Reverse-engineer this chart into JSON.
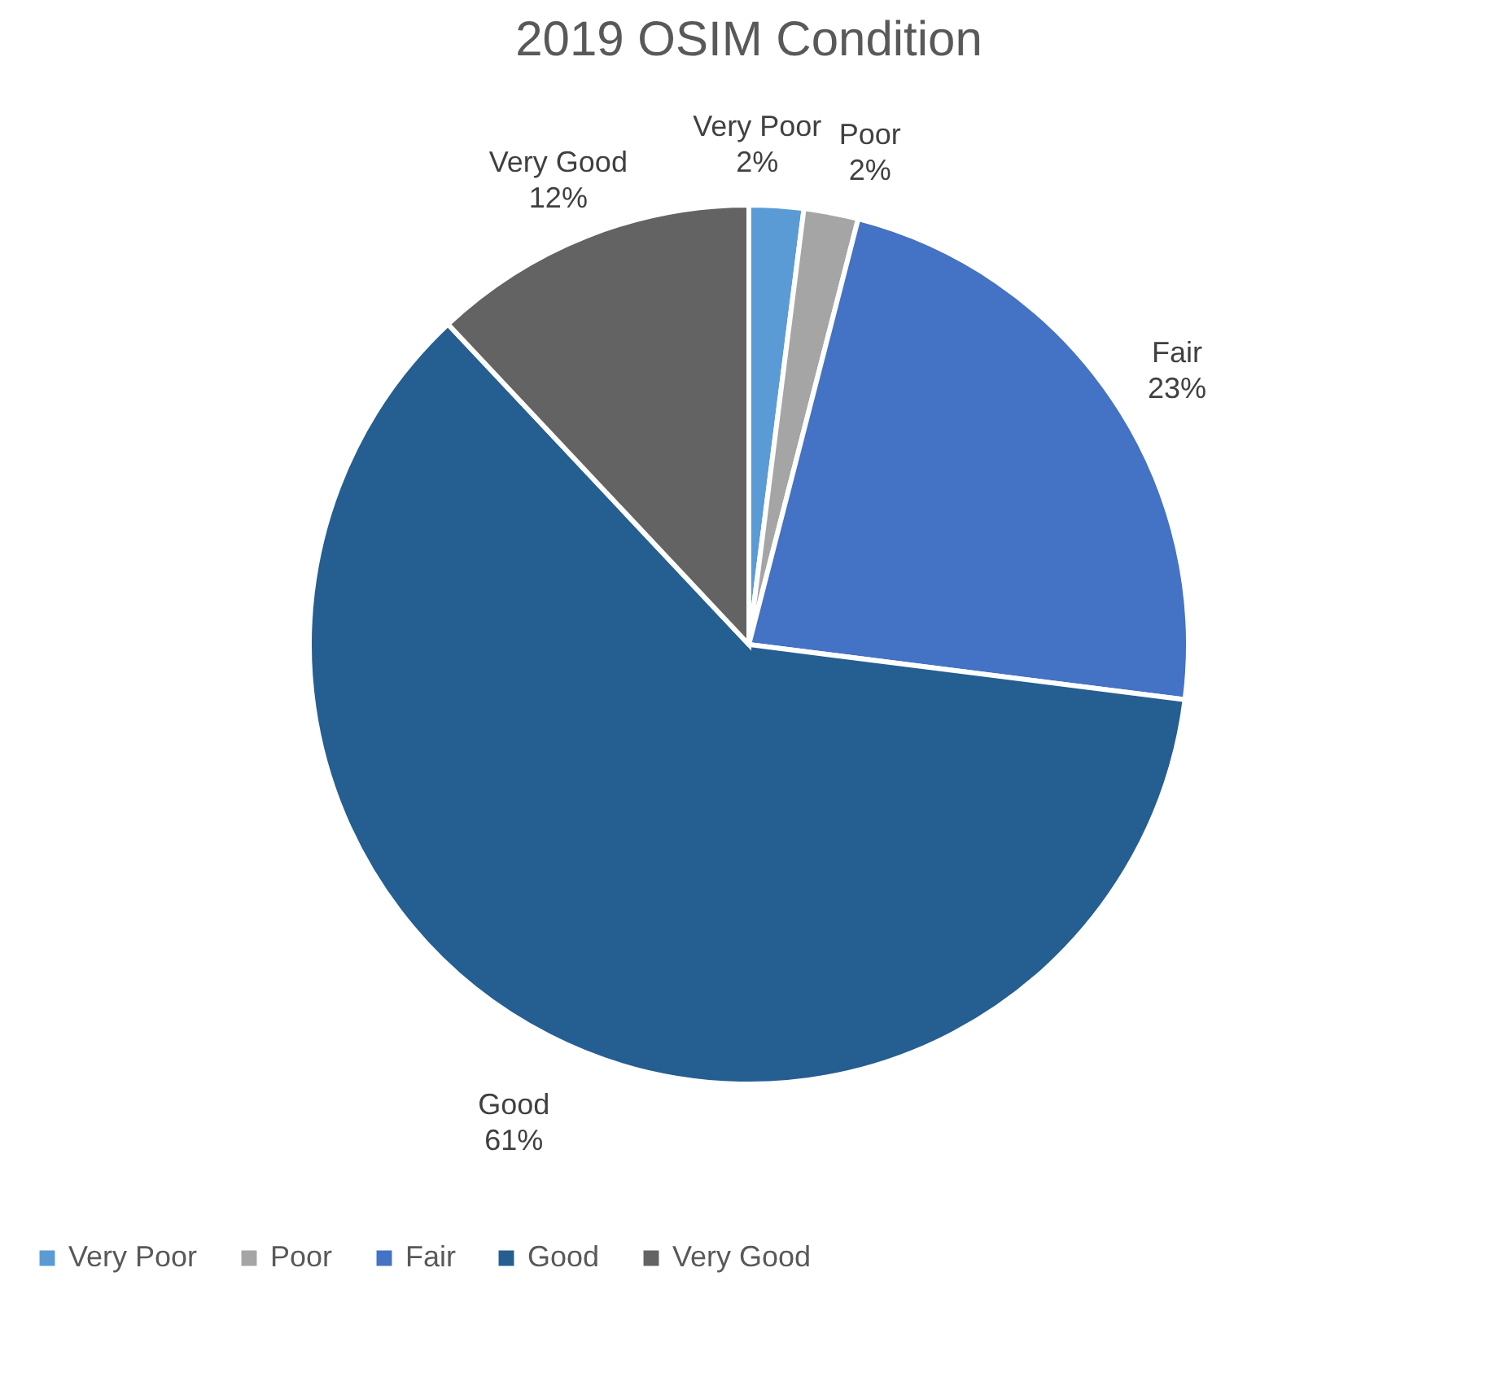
{
  "chart_data": {
    "type": "pie",
    "title": "2019 OSIM Condition",
    "categories": [
      "Very Poor",
      "Poor",
      "Fair",
      "Good",
      "Very Good"
    ],
    "values": [
      2,
      2,
      23,
      61,
      12
    ],
    "value_labels": [
      "2%",
      "2%",
      "23%",
      "61%",
      "12%"
    ],
    "colors": [
      "#5b9bd5",
      "#a5a5a5",
      "#4472c4",
      "#255e91",
      "#636363"
    ],
    "legend": "bottom"
  }
}
